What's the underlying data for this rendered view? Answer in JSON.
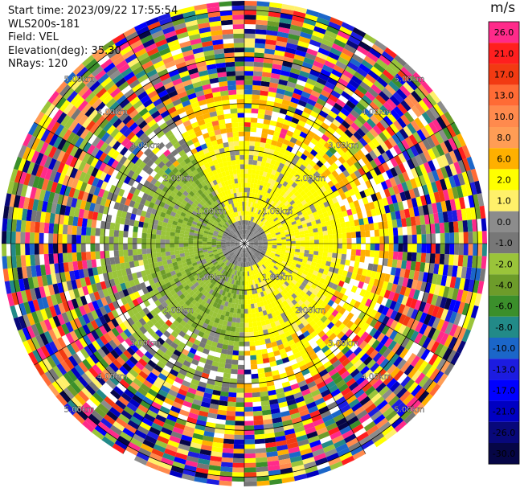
{
  "header": {
    "start_time": "Start time: 2023/09/22 17:55:54",
    "instrument": "WLS200s-181",
    "field": "Field: VEL",
    "elevation": "Elevation(deg): 35.30",
    "nrays": "NRays: 120"
  },
  "colorbar": {
    "unit": "m/s",
    "bins": [
      {
        "label": "26.0",
        "color": "#ff2a8a"
      },
      {
        "label": "21.0",
        "color": "#ff1f1f"
      },
      {
        "label": "17.0",
        "color": "#f23a12"
      },
      {
        "label": "13.0",
        "color": "#ff6b35"
      },
      {
        "label": "10.0",
        "color": "#ff8a4d"
      },
      {
        "label": "8.0",
        "color": "#ff9d55"
      },
      {
        "label": "6.0",
        "color": "#ffb000"
      },
      {
        "label": "2.0",
        "color": "#ffff00"
      },
      {
        "label": "1.0",
        "color": "#fff06a"
      },
      {
        "label": "0.0",
        "color": "#8c8c8c"
      },
      {
        "label": "-1.0",
        "color": "#777777"
      },
      {
        "label": "-2.0",
        "color": "#9ac43a"
      },
      {
        "label": "-4.0",
        "color": "#6d9c2a"
      },
      {
        "label": "-6.0",
        "color": "#3b8f2b"
      },
      {
        "label": "-8.0",
        "color": "#228a88"
      },
      {
        "label": "-10.0",
        "color": "#1b66c9"
      },
      {
        "label": "-13.0",
        "color": "#1c1ce0"
      },
      {
        "label": "-17.0",
        "color": "#0000ff"
      },
      {
        "label": "-21.0",
        "color": "#0000c2"
      },
      {
        "label": "-26.0",
        "color": "#08087a"
      },
      {
        "label": "-30.0",
        "color": "#060646"
      }
    ]
  },
  "chart_data": {
    "type": "heatmap",
    "projection": "polar",
    "field": "VEL",
    "unit": "m/s",
    "nrays": 120,
    "range_rings": [
      {
        "range_km": 1.0,
        "label": "1.00km"
      },
      {
        "range_km": 2.0,
        "label": "2.00km"
      },
      {
        "range_km": 3.0,
        "label": "3.00km"
      },
      {
        "range_km": 4.0,
        "label": "4.00km"
      },
      {
        "range_km": 5.0,
        "label": "5.00km"
      }
    ],
    "max_range_km": 5.2,
    "regions": [
      {
        "name": "near-field receding",
        "azimuth_deg": [
          -30,
          180
        ],
        "range_km": [
          0,
          2.2
        ],
        "value_ms": 2.0
      },
      {
        "name": "near-field approaching",
        "azimuth_deg": [
          180,
          330
        ],
        "range_km": [
          0,
          2.2
        ],
        "value_ms": -4.0
      },
      {
        "name": "near-field calm",
        "azimuth_deg": [
          0,
          360
        ],
        "range_km": [
          0,
          0.6
        ],
        "value_ms": 0.0
      },
      {
        "name": "far-field noise",
        "azimuth_deg": [
          0,
          360
        ],
        "range_km": [
          3.3,
          5.2
        ],
        "value_ms": "mixed"
      }
    ]
  }
}
